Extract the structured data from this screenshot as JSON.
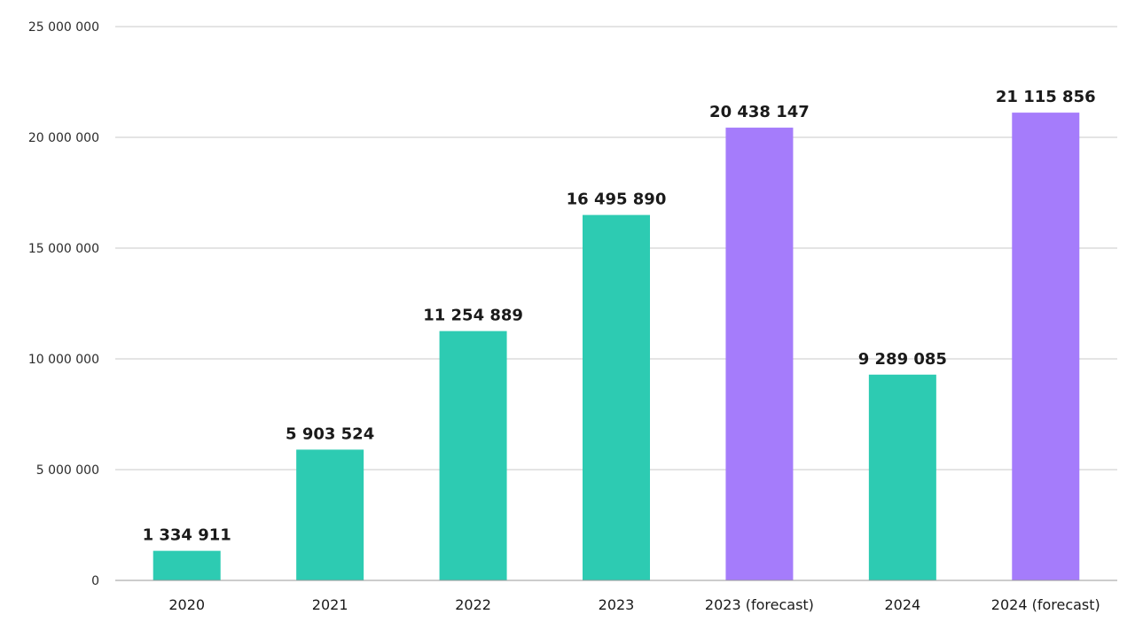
{
  "chart_data": {
    "type": "bar",
    "categories": [
      "2020",
      "2021",
      "2022",
      "2023",
      "2023 (forecast)",
      "2024",
      "2024 (forecast)"
    ],
    "values": [
      1334911,
      5903524,
      11254889,
      16495890,
      20438147,
      9289085,
      21115856
    ],
    "data_labels": [
      "1 334 911",
      "5 903 524",
      "11 254 889",
      "16 495 890",
      "20 438 147",
      "9 289 085",
      "21 115 856"
    ],
    "bar_kind": [
      "actual",
      "actual",
      "actual",
      "actual",
      "forecast",
      "actual",
      "forecast"
    ],
    "ylim": [
      0,
      25000000
    ],
    "yticks": [
      0,
      5000000,
      10000000,
      15000000,
      20000000,
      25000000
    ],
    "ytick_labels": [
      "0",
      "5 000 000",
      "10 000 000",
      "15 000 000",
      "20 000 000",
      "25 000 000"
    ],
    "grid": true,
    "title": "",
    "xlabel": "",
    "ylabel": "",
    "colors": {
      "actual": "#2dcbb2",
      "forecast": "#a57cfb"
    }
  }
}
